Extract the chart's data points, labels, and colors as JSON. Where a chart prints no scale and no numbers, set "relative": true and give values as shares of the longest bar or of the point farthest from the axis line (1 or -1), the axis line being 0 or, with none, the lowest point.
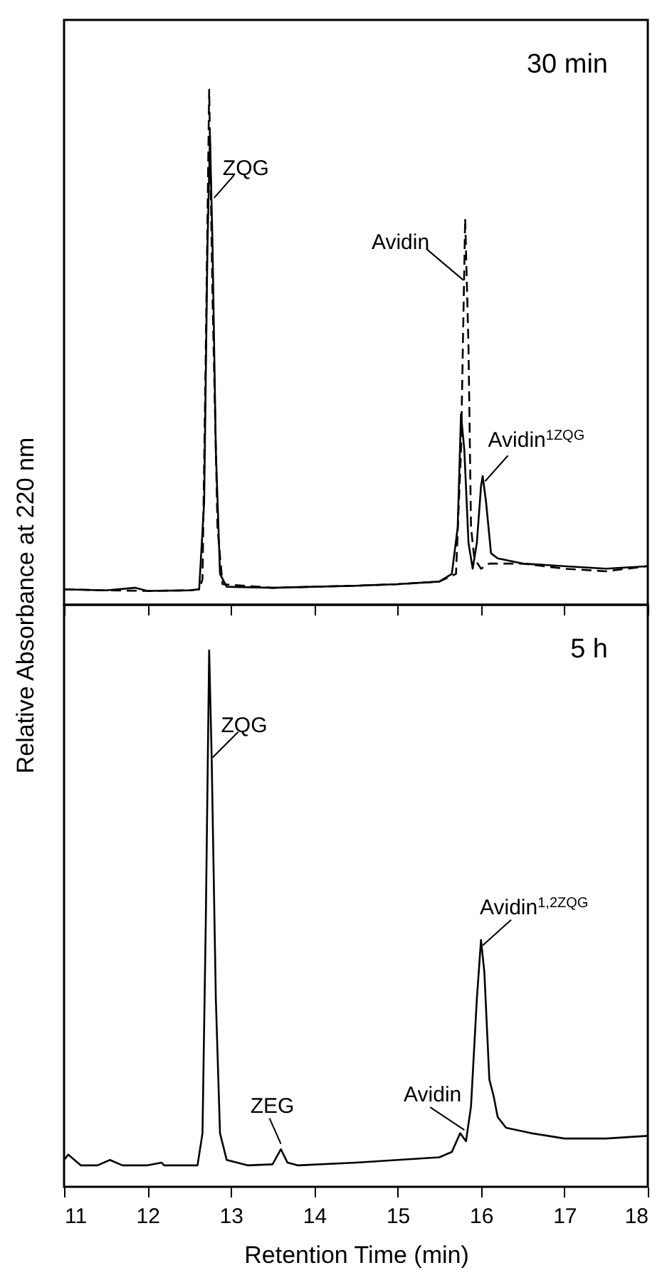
{
  "chart_data": [
    {
      "type": "line",
      "title": "30 min",
      "ylabel": "Relative Absorbance at 220 nm",
      "relative": true,
      "xlim": [
        11,
        18
      ],
      "xticks": [
        11,
        12,
        13,
        14,
        15,
        16,
        17,
        18
      ],
      "tick_labels": false,
      "series": [
        {
          "color": "#000000",
          "line_style": "solid",
          "x": [
            11.0,
            11.5,
            11.85,
            12.0,
            12.5,
            12.62,
            12.68,
            12.72,
            12.75,
            12.78,
            12.82,
            12.87,
            12.95,
            13.5,
            14.0,
            14.5,
            15.0,
            15.5,
            15.65,
            15.72,
            15.76,
            15.8,
            15.85,
            15.9,
            15.95,
            16.0,
            16.02,
            16.06,
            16.12,
            16.2,
            16.5,
            17.0,
            17.5,
            18.0
          ],
          "values": [
            0.03,
            0.028,
            0.033,
            0.027,
            0.028,
            0.03,
            0.2,
            0.7,
            0.91,
            0.7,
            0.3,
            0.06,
            0.035,
            0.033,
            0.035,
            0.037,
            0.04,
            0.045,
            0.06,
            0.15,
            0.37,
            0.3,
            0.12,
            0.07,
            0.12,
            0.23,
            0.25,
            0.2,
            0.1,
            0.09,
            0.08,
            0.075,
            0.07,
            0.075
          ]
        },
        {
          "color": "#000000",
          "line_style": "dashed",
          "x": [
            11.0,
            11.5,
            12.0,
            12.5,
            12.62,
            12.66,
            12.7,
            12.74,
            12.78,
            12.84,
            12.9,
            13.5,
            14.0,
            14.5,
            15.0,
            15.5,
            15.7,
            15.76,
            15.81,
            15.85,
            15.88,
            15.92,
            16.0,
            16.1,
            16.5,
            17.0,
            17.5,
            18.0
          ],
          "values": [
            0.03,
            0.028,
            0.027,
            0.028,
            0.03,
            0.05,
            0.5,
            1.0,
            0.6,
            0.15,
            0.04,
            0.033,
            0.035,
            0.037,
            0.04,
            0.045,
            0.06,
            0.3,
            0.75,
            0.5,
            0.15,
            0.09,
            0.07,
            0.08,
            0.08,
            0.07,
            0.065,
            0.075
          ]
        }
      ],
      "annotations": [
        {
          "text": "ZQG",
          "x": 12.8,
          "y": 0.79
        },
        {
          "text": "Avidin",
          "x": 15.79,
          "y": 0.63
        },
        {
          "text": "Avidin$^{1ZQG}$",
          "x": 16.05,
          "y": 0.24
        }
      ]
    },
    {
      "type": "line",
      "title": "5 h",
      "xlabel": "Retention Time (min)",
      "relative": true,
      "xlim": [
        11,
        18
      ],
      "xticks": [
        11,
        12,
        13,
        14,
        15,
        16,
        17,
        18
      ],
      "tick_labels": "x",
      "series": [
        {
          "color": "#000000",
          "line_style": "solid",
          "x": [
            11.0,
            11.05,
            11.2,
            11.4,
            11.55,
            11.7,
            12.0,
            12.17,
            12.2,
            12.6,
            12.66,
            12.7,
            12.74,
            12.77,
            12.82,
            12.87,
            12.95,
            13.2,
            13.5,
            13.6,
            13.68,
            13.8,
            14.5,
            15.0,
            15.5,
            15.65,
            15.75,
            15.82,
            15.88,
            15.95,
            16.0,
            16.04,
            16.1,
            16.15,
            16.2,
            16.3,
            16.6,
            17.0,
            17.5,
            18.0
          ],
          "values": [
            0.05,
            0.06,
            0.04,
            0.04,
            0.05,
            0.04,
            0.04,
            0.045,
            0.04,
            0.04,
            0.1,
            0.5,
            1.0,
            0.8,
            0.35,
            0.1,
            0.05,
            0.04,
            0.042,
            0.07,
            0.045,
            0.04,
            0.045,
            0.05,
            0.055,
            0.065,
            0.1,
            0.085,
            0.15,
            0.35,
            0.46,
            0.4,
            0.2,
            0.17,
            0.13,
            0.11,
            0.1,
            0.09,
            0.09,
            0.095
          ]
        }
      ],
      "annotations": [
        {
          "text": "ZQG",
          "x": 12.78,
          "y": 0.8
        },
        {
          "text": "ZEG",
          "x": 13.6,
          "y": 0.08
        },
        {
          "text": "Avidin",
          "x": 15.8,
          "y": 0.106
        },
        {
          "text": "Avidin$^{1,2ZQG}$",
          "x": 16.02,
          "y": 0.45
        }
      ]
    }
  ]
}
